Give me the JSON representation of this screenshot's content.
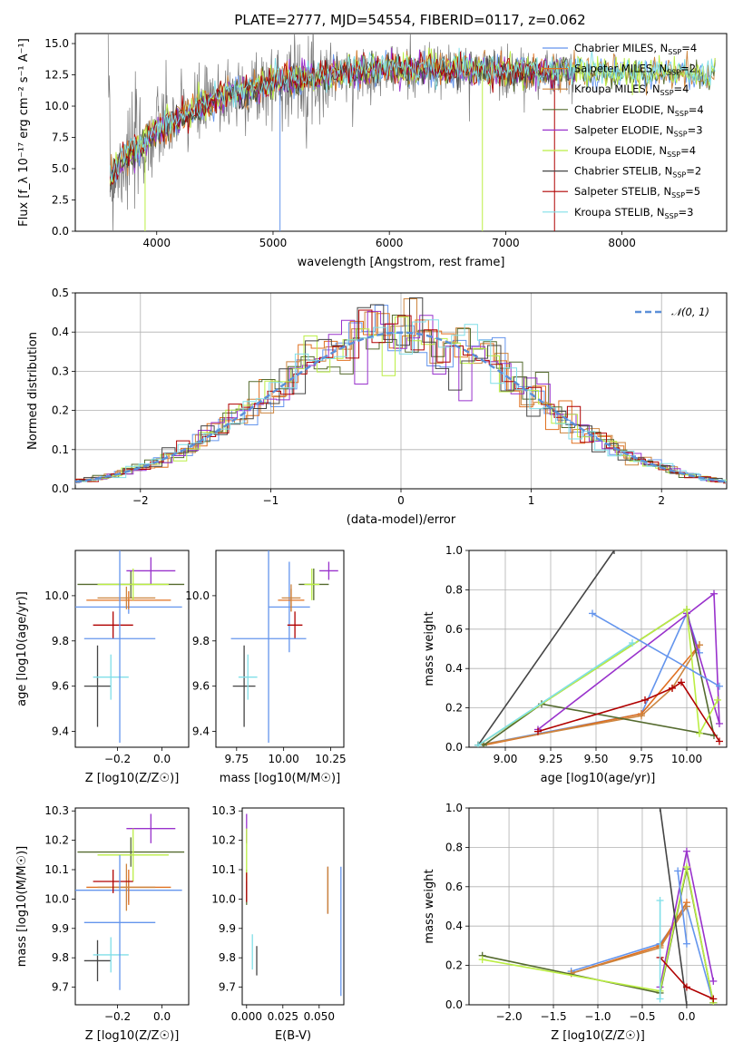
{
  "colors": [
    "#6495ed",
    "#e07020",
    "#cd853f",
    "#556b2f",
    "#9932cc",
    "#bbee44",
    "#444444",
    "#b00000",
    "#80dfe8"
  ],
  "colors_alt": [
    "#5b8fd8",
    "#e07a2a",
    "#d68a4a",
    "#608060",
    "#9b32c8",
    "#c8e85a",
    "#555555",
    "#b01010",
    "#7fd8e0"
  ],
  "chart_data": [
    {
      "id": "spectrum",
      "type": "line",
      "title": "PLATE=2777, MJD=54554, FIBERID=0117, z=0.062",
      "xlabel": "wavelength [Angstrom, rest frame]",
      "ylabel": "Flux [f_λ 10⁻¹⁷ erg cm⁻² s⁻¹ A⁻¹]",
      "xlim": [
        3300,
        8900
      ],
      "ylim": [
        0,
        15.8
      ],
      "xticks": [
        4000,
        5000,
        6000,
        7000,
        8000
      ],
      "yticks": [
        0.0,
        2.5,
        5.0,
        7.5,
        10.0,
        12.5,
        15.0
      ],
      "legend": [
        "Chabrier MILES, N_SSP=4",
        "Salpeter MILES, N_SSP=2",
        "Kroupa MILES, N_SSP=4",
        "Chabrier ELODIE, N_SSP=4",
        "Salpeter ELODIE, N_SSP=3",
        "Kroupa ELODIE, N_SSP=4",
        "Chabrier STELIB, N_SSP=2",
        "Salpeter STELIB, N_SSP=5",
        "Kroupa STELIB, N_SSP=3"
      ],
      "legend_position": "right",
      "continuum": {
        "x": [
          3600,
          3700,
          3900,
          4000,
          4300,
          4600,
          5000,
          5500,
          6000,
          6500,
          7000,
          7500,
          8000,
          8500,
          8800
        ],
        "y": [
          4.0,
          5.5,
          7.0,
          8.0,
          9.5,
          10.8,
          11.8,
          12.5,
          12.8,
          12.9,
          12.7,
          12.6,
          12.6,
          12.5,
          12.4
        ]
      }
    },
    {
      "id": "residuals",
      "type": "line",
      "xlabel": "(data-model)/error",
      "ylabel": "Normed distribution",
      "xlim": [
        -2.5,
        2.5
      ],
      "ylim": [
        0,
        0.5
      ],
      "xticks": [
        -2,
        -1,
        0,
        1,
        2
      ],
      "yticks": [
        0.0,
        0.1,
        0.2,
        0.3,
        0.4,
        0.5
      ],
      "grid": true,
      "legend": [
        "N(0,1)"
      ],
      "legend_position": "top-right"
    },
    {
      "id": "age-vs-Z",
      "type": "scatter",
      "xlabel": "Z [log10(Z/Z☉)]",
      "ylabel": "age [log10(age/yr)]",
      "xlim": [
        -0.39,
        0.12
      ],
      "ylim": [
        9.33,
        10.2
      ],
      "xticks": [
        -0.2,
        0.0
      ],
      "yticks": [
        9.4,
        9.6,
        9.8,
        10.0
      ],
      "points": [
        {
          "x": -0.15,
          "y": 9.95,
          "xerr": 0.24,
          "yerr": 0.03
        },
        {
          "x": -0.15,
          "y": 9.98,
          "xerr": 0.19,
          "yerr": 0.04
        },
        {
          "x": -0.16,
          "y": 9.99,
          "xerr": 0.13,
          "yerr": 0.05
        },
        {
          "x": -0.14,
          "y": 10.05,
          "xerr": 0.24,
          "yerr": 0.06
        },
        {
          "x": -0.05,
          "y": 10.11,
          "xerr": 0.11,
          "yerr": 0.06
        },
        {
          "x": -0.13,
          "y": 10.05,
          "xerr": 0.16,
          "yerr": 0.07
        },
        {
          "x": -0.29,
          "y": 9.6,
          "xerr": 0.06,
          "yerr": 0.18
        },
        {
          "x": -0.22,
          "y": 9.87,
          "xerr": 0.09,
          "yerr": 0.06
        },
        {
          "x": -0.23,
          "y": 9.64,
          "xerr": 0.08,
          "yerr": 0.1
        },
        {
          "x": -0.19,
          "y": 9.81,
          "xerr": 0.16,
          "yerr": 0.46
        }
      ]
    },
    {
      "id": "age-vs-mass",
      "type": "scatter",
      "xlabel": "mass [log10(M/M☉)]",
      "ylabel": "",
      "xlim": [
        9.64,
        10.32
      ],
      "ylim": [
        9.33,
        10.2
      ],
      "xticks": [
        9.75,
        10.0,
        10.25
      ],
      "yticks": [
        9.4,
        9.6,
        9.8,
        10.0
      ],
      "points": [
        {
          "x": 10.03,
          "y": 9.95,
          "xerr": 0.11,
          "yerr": 0.2
        },
        {
          "x": 10.04,
          "y": 9.98,
          "xerr": 0.07,
          "yerr": 0.05
        },
        {
          "x": 10.04,
          "y": 9.99,
          "xerr": 0.05,
          "yerr": 0.06
        },
        {
          "x": 10.16,
          "y": 10.05,
          "xerr": 0.08,
          "yerr": 0.07
        },
        {
          "x": 10.24,
          "y": 10.11,
          "xerr": 0.05,
          "yerr": 0.04
        },
        {
          "x": 10.15,
          "y": 10.05,
          "xerr": 0.04,
          "yerr": 0.07
        },
        {
          "x": 9.79,
          "y": 9.6,
          "xerr": 0.06,
          "yerr": 0.18
        },
        {
          "x": 10.06,
          "y": 9.87,
          "xerr": 0.04,
          "yerr": 0.06
        },
        {
          "x": 9.81,
          "y": 9.64,
          "xerr": 0.05,
          "yerr": 0.1
        },
        {
          "x": 9.92,
          "y": 9.81,
          "xerr": 0.2,
          "yerr": 0.46
        }
      ]
    },
    {
      "id": "weight-vs-age",
      "type": "line",
      "xlabel": "age  [log10(age/yr)]",
      "ylabel": "mass weight",
      "xlim": [
        8.8,
        10.22
      ],
      "ylim": [
        0,
        1.0
      ],
      "xticks": [
        9.0,
        9.25,
        9.5,
        9.75,
        10.0
      ],
      "yticks": [
        0.0,
        0.2,
        0.4,
        0.6,
        0.8,
        1.0
      ],
      "grid": true,
      "series": [
        {
          "x": [
            8.85,
            9.75,
            10.0,
            10.07
          ],
          "y": [
            0.01,
            0.17,
            0.68,
            0.48
          ]
        },
        {
          "x": [
            8.88,
            9.75,
            10.07
          ],
          "y": [
            0.01,
            0.17,
            0.52
          ]
        },
        {
          "x": [
            8.85,
            9.75,
            9.92,
            10.07
          ],
          "y": [
            0.01,
            0.16,
            0.3,
            0.52
          ]
        },
        {
          "x": [
            8.85,
            10.0,
            10.15,
            9.2,
            8.88
          ],
          "y": [
            0.01,
            0.7,
            0.06,
            0.22,
            0.01
          ]
        },
        {
          "x": [
            9.18,
            10.15,
            10.18,
            10.0
          ],
          "y": [
            0.09,
            0.78,
            0.12,
            0.68
          ]
        },
        {
          "x": [
            8.85,
            10.0,
            10.07,
            10.17
          ],
          "y": [
            0.01,
            0.7,
            0.07,
            0.24
          ]
        },
        {
          "x": [
            8.85,
            9.6
          ],
          "y": [
            0.01,
            1.0
          ]
        },
        {
          "x": [
            9.18,
            9.77,
            9.92,
            9.97,
            10.18
          ],
          "y": [
            0.08,
            0.24,
            0.3,
            0.33,
            0.03
          ]
        },
        {
          "x": [
            8.85,
            9.7
          ],
          "y": [
            0.01,
            0.53
          ]
        },
        {
          "x": [
            9.48,
            10.18
          ],
          "y": [
            0.68,
            0.31
          ]
        }
      ]
    },
    {
      "id": "mass-vs-Z",
      "type": "scatter",
      "xlabel": "Z [log10(Z/Z☉)]",
      "ylabel": "mass [log10(M/M☉)]",
      "xlim": [
        -0.39,
        0.12
      ],
      "ylim": [
        9.64,
        10.31
      ],
      "xticks": [
        -0.2,
        0.0
      ],
      "yticks": [
        9.7,
        9.8,
        9.9,
        10.0,
        10.1,
        10.2,
        10.3
      ],
      "points": [
        {
          "x": -0.15,
          "y": 10.03,
          "xerr": 0.24,
          "yerr": 0.04
        },
        {
          "x": -0.15,
          "y": 10.04,
          "xerr": 0.19,
          "yerr": 0.06
        },
        {
          "x": -0.16,
          "y": 10.04,
          "xerr": 0.13,
          "yerr": 0.08
        },
        {
          "x": -0.14,
          "y": 10.16,
          "xerr": 0.24,
          "yerr": 0.05
        },
        {
          "x": -0.05,
          "y": 10.24,
          "xerr": 0.11,
          "yerr": 0.05
        },
        {
          "x": -0.13,
          "y": 10.15,
          "xerr": 0.16,
          "yerr": 0.09
        },
        {
          "x": -0.29,
          "y": 9.79,
          "xerr": 0.06,
          "yerr": 0.07
        },
        {
          "x": -0.22,
          "y": 10.06,
          "xerr": 0.09,
          "yerr": 0.04
        },
        {
          "x": -0.23,
          "y": 9.81,
          "xerr": 0.08,
          "yerr": 0.06
        },
        {
          "x": -0.19,
          "y": 9.92,
          "xerr": 0.16,
          "yerr": 0.23
        }
      ]
    },
    {
      "id": "mass-vs-EBV",
      "type": "scatter",
      "xlabel": "E(B-V)",
      "ylabel": "",
      "xlim": [
        -0.003,
        0.067
      ],
      "ylim": [
        9.64,
        10.31
      ],
      "xticks": [
        0.0,
        0.025,
        0.05
      ],
      "yticks": [
        9.7,
        9.8,
        9.9,
        10.0,
        10.1,
        10.2,
        10.3
      ],
      "points": [
        {
          "x": 0.056,
          "y": 10.03,
          "xerr": 0,
          "yerr": 0.08
        },
        {
          "x": 0.056,
          "y": 10.03,
          "xerr": 0,
          "yerr": 0.08
        },
        {
          "x": 0.056,
          "y": 10.03,
          "xerr": 0,
          "yerr": 0.08
        },
        {
          "x": 0.0,
          "y": 10.04,
          "xerr": 0,
          "yerr": 0.06
        },
        {
          "x": 0.0,
          "y": 10.24,
          "xerr": 0,
          "yerr": 0.05
        },
        {
          "x": 0.0,
          "y": 10.15,
          "xerr": 0,
          "yerr": 0.09
        },
        {
          "x": 0.007,
          "y": 9.79,
          "xerr": 0,
          "yerr": 0.05
        },
        {
          "x": 0.0,
          "y": 10.04,
          "xerr": 0,
          "yerr": 0.05
        },
        {
          "x": 0.004,
          "y": 9.82,
          "xerr": 0,
          "yerr": 0.06
        },
        {
          "x": 0.065,
          "y": 9.89,
          "xerr": 0,
          "yerr": 0.22
        }
      ]
    },
    {
      "id": "weight-vs-Z",
      "type": "line",
      "xlabel": "Z [log10(Z/Z☉)]",
      "ylabel": "mass weight",
      "xlim": [
        -2.45,
        0.45
      ],
      "ylim": [
        0,
        1.0
      ],
      "xticks": [
        -2.0,
        -1.5,
        -1.0,
        -0.5,
        0.0
      ],
      "yticks": [
        0.0,
        0.2,
        0.4,
        0.6,
        0.8,
        1.0
      ],
      "grid": true,
      "series": [
        {
          "x": [
            -1.3,
            -0.3,
            0.0,
            0.3
          ],
          "y": [
            0.17,
            0.31,
            0.5,
            0.01
          ]
        },
        {
          "x": [
            -1.3,
            -0.3,
            0.0
          ],
          "y": [
            0.16,
            0.3,
            0.52
          ]
        },
        {
          "x": [
            -1.3,
            -0.3,
            0.0
          ],
          "y": [
            0.16,
            0.29,
            0.5
          ]
        },
        {
          "x": [
            -2.3,
            -0.3,
            0.0,
            0.3
          ],
          "y": [
            0.25,
            0.06,
            0.69,
            0.01
          ]
        },
        {
          "x": [
            -0.3,
            0.0,
            0.3
          ],
          "y": [
            0.09,
            0.78,
            0.12
          ]
        },
        {
          "x": [
            -2.3,
            -0.3,
            0.0,
            0.3
          ],
          "y": [
            0.23,
            0.07,
            0.7,
            0.01
          ]
        },
        {
          "x": [
            -0.3,
            0.0
          ],
          "y": [
            1.0,
            0.0
          ]
        },
        {
          "x": [
            -0.3,
            0.0,
            0.3
          ],
          "y": [
            0.24,
            0.09,
            0.03
          ]
        },
        {
          "x": [
            -0.3,
            -0.3
          ],
          "y": [
            0.53,
            0.03
          ]
        },
        {
          "x": [
            -0.1,
            0.0
          ],
          "y": [
            0.68,
            0.31
          ]
        }
      ]
    }
  ]
}
